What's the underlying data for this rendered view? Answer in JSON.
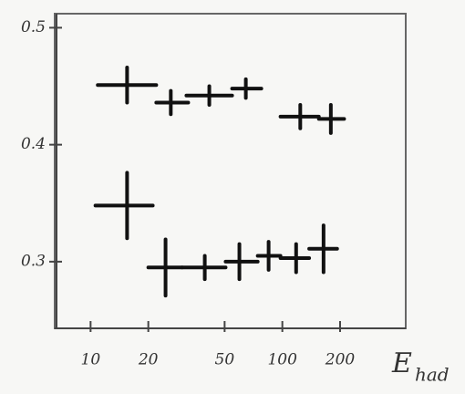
{
  "chart_data": {
    "type": "errorbar",
    "xlabel": "E",
    "xlabel_subscript": "had",
    "xscale": "log",
    "xlim": [
      6.5,
      440
    ],
    "xticks": [
      10,
      20,
      50,
      100,
      200
    ],
    "ylim": [
      0.243,
      0.512
    ],
    "yticks": [
      0.3,
      0.4,
      0.5
    ],
    "series": [
      {
        "color": "#111111",
        "x": [
          15.5,
          26.2,
          41.6,
          64.5,
          124,
          179
        ],
        "x_lo": [
          10.9,
          22,
          31.6,
          54.7,
          97.8,
          155
        ],
        "x_hi": [
          22,
          32.3,
          54.7,
          77.7,
          155,
          210
        ],
        "values": [
          0.451,
          0.436,
          0.442,
          0.448,
          0.424,
          0.422
        ],
        "yerr": [
          0.015,
          0.01,
          0.008,
          0.008,
          0.01,
          0.012
        ]
      },
      {
        "color": "#111111",
        "x": [
          15.5,
          24.6,
          39.4,
          59.7,
          84.8,
          118,
          164
        ],
        "x_lo": [
          10.6,
          20,
          30,
          50.6,
          74.4,
          97.8,
          138
        ],
        "x_hi": [
          21.1,
          30,
          50.6,
          74.4,
          97.8,
          138,
          193
        ],
        "values": [
          0.348,
          0.295,
          0.295,
          0.3,
          0.305,
          0.303,
          0.311
        ],
        "yerr": [
          0.028,
          0.024,
          0.01,
          0.015,
          0.012,
          0.012,
          0.02
        ]
      }
    ]
  }
}
